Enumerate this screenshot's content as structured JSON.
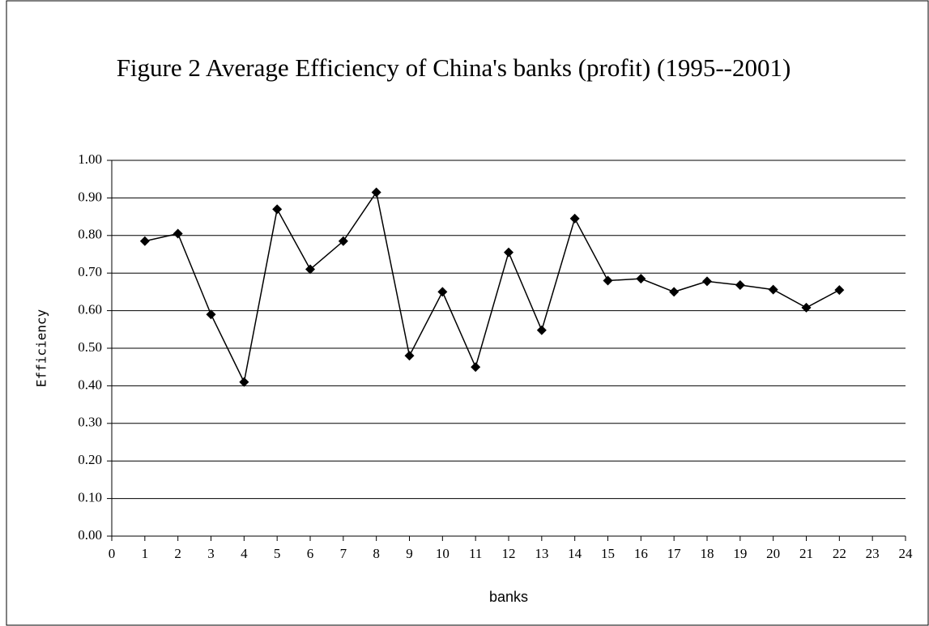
{
  "chart_data": {
    "type": "line",
    "title": "Figure 2  Average Efficiency of China's banks (profit) (1995--2001)",
    "x_label": "banks",
    "y_label": "Efficiency",
    "x": [
      1,
      2,
      3,
      4,
      5,
      6,
      7,
      8,
      9,
      10,
      11,
      12,
      13,
      14,
      15,
      16,
      17,
      18,
      19,
      20,
      21,
      22
    ],
    "values": [
      0.785,
      0.805,
      0.59,
      0.41,
      0.87,
      0.71,
      0.785,
      0.915,
      0.48,
      0.65,
      0.45,
      0.755,
      0.548,
      0.845,
      0.68,
      0.685,
      0.65,
      0.678,
      0.668,
      0.656,
      0.608,
      0.655
    ],
    "color": "#000000",
    "xlim": [
      0,
      24
    ],
    "xticks": [
      0,
      1,
      2,
      3,
      4,
      5,
      6,
      7,
      8,
      9,
      10,
      11,
      12,
      13,
      14,
      15,
      16,
      17,
      18,
      19,
      20,
      21,
      22,
      23,
      24
    ],
    "ylim": [
      0,
      1
    ],
    "yticks": [
      {
        "value": 0,
        "label": "0.00"
      },
      {
        "value": 0.1,
        "label": "0.10"
      },
      {
        "value": 0.2,
        "label": "0.20"
      },
      {
        "value": 0.3,
        "label": "0.30"
      },
      {
        "value": 0.4,
        "label": "0.40"
      },
      {
        "value": 0.5,
        "label": "0.50"
      },
      {
        "value": 0.6,
        "label": "0.60"
      },
      {
        "value": 0.7,
        "label": "0.70"
      },
      {
        "value": 0.8,
        "label": "0.80"
      },
      {
        "value": 0.9,
        "label": "0.90"
      },
      {
        "value": 1,
        "label": "1.00"
      }
    ],
    "grid": true
  }
}
